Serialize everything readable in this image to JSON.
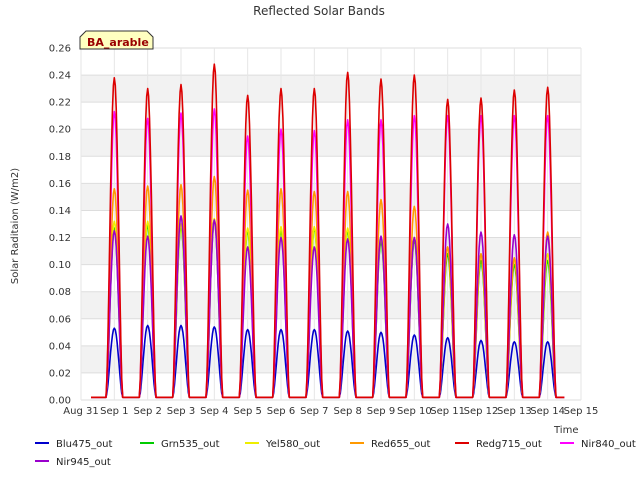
{
  "chart_data": {
    "type": "line",
    "title": "Reflected Solar Bands",
    "site_label": "BA_arable",
    "xlabel": "Time",
    "ylabel": "Solar Raditaion (W/m2)",
    "ylim": [
      0,
      0.26
    ],
    "xlim": [
      0,
      15
    ],
    "grid": true,
    "legend_position": "bottom",
    "y_ticks": [
      "0.00",
      "0.02",
      "0.04",
      "0.06",
      "0.08",
      "0.10",
      "0.12",
      "0.14",
      "0.16",
      "0.18",
      "0.20",
      "0.22",
      "0.24",
      "0.26"
    ],
    "x_ticks": [
      "Aug 31",
      "Sep 1",
      "Sep 2",
      "Sep 3",
      "Sep 4",
      "Sep 5",
      "Sep 6",
      "Sep 7",
      "Sep 8",
      "Sep 9",
      "Sep 10",
      "Sep 11",
      "Sep 12",
      "Sep 13",
      "Sep 14",
      "Sep 15"
    ],
    "series": [
      {
        "name": "Blu475_out",
        "color": "#0000cc",
        "daily_peaks": [
          0.053,
          0.055,
          0.055,
          0.054,
          0.052,
          0.052,
          0.052,
          0.051,
          0.05,
          0.048,
          0.046,
          0.044,
          0.043,
          0.043
        ]
      },
      {
        "name": "Grn535_out",
        "color": "#00cc00",
        "daily_peaks": [
          0.127,
          0.129,
          0.128,
          0.133,
          0.125,
          0.125,
          0.127,
          0.125,
          0.117,
          0.118,
          0.108,
          0.103,
          0.1,
          0.103
        ]
      },
      {
        "name": "Yel580_out",
        "color": "#eeee00",
        "daily_peaks": [
          0.132,
          0.132,
          0.13,
          0.134,
          0.127,
          0.128,
          0.128,
          0.127,
          0.12,
          0.12,
          0.113,
          0.108,
          0.104,
          0.108
        ]
      },
      {
        "name": "Red655_out",
        "color": "#ff9900",
        "daily_peaks": [
          0.156,
          0.158,
          0.159,
          0.165,
          0.155,
          0.156,
          0.154,
          0.154,
          0.148,
          0.143,
          0.113,
          0.108,
          0.105,
          0.124
        ]
      },
      {
        "name": "Redg715_out",
        "color": "#dd0000",
        "daily_peaks": [
          0.238,
          0.23,
          0.233,
          0.248,
          0.225,
          0.23,
          0.23,
          0.242,
          0.237,
          0.24,
          0.222,
          0.223,
          0.229,
          0.231
        ]
      },
      {
        "name": "Nir840_out",
        "color": "#ff00ff",
        "daily_peaks": [
          0.213,
          0.208,
          0.212,
          0.215,
          0.195,
          0.2,
          0.199,
          0.207,
          0.207,
          0.21,
          0.21,
          0.21,
          0.21,
          0.21
        ]
      },
      {
        "name": "Nir945_out",
        "color": "#9900cc",
        "daily_peaks": [
          0.125,
          0.121,
          0.136,
          0.133,
          0.113,
          0.12,
          0.113,
          0.119,
          0.121,
          0.12,
          0.13,
          0.124,
          0.122,
          0.121
        ]
      }
    ],
    "night_baseline": 0.002
  }
}
